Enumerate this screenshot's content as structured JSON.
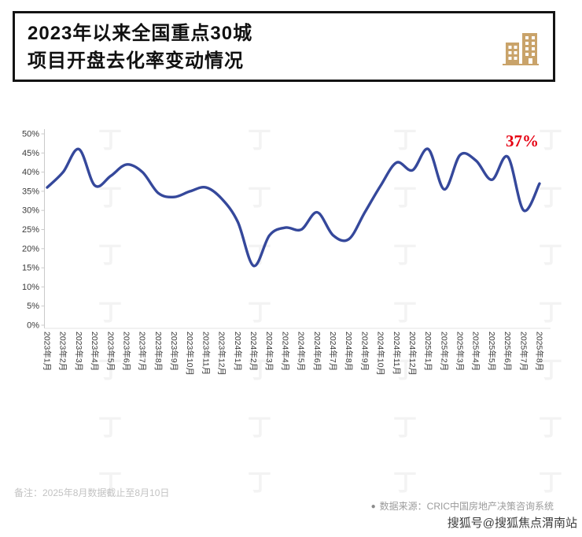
{
  "header": {
    "title_line1": "2023年以来全国重点30城",
    "title_line2": "项目开盘去化率变动情况",
    "icon_color": "#c9a36a"
  },
  "annotation": {
    "label": "37%",
    "color": "#e60012"
  },
  "chart_data": {
    "type": "line",
    "title": "2023年以来全国重点30城项目开盘去化率变动情况",
    "categories": [
      "2023年1月",
      "2023年2月",
      "2023年3月",
      "2023年4月",
      "2023年5月",
      "2023年6月",
      "2023年7月",
      "2023年8月",
      "2023年9月",
      "2023年10月",
      "2023年11月",
      "2023年12月",
      "2024年1月",
      "2024年2月",
      "2024年3月",
      "2024年4月",
      "2024年5月",
      "2024年6月",
      "2024年7月",
      "2024年8月",
      "2024年9月",
      "2024年10月",
      "2024年11月",
      "2024年12月",
      "2025年1月",
      "2025年2月",
      "2025年3月",
      "2025年4月",
      "2025年5月",
      "2025年6月",
      "2025年7月",
      "2025年8月"
    ],
    "values": [
      36,
      40,
      46,
      36.5,
      39,
      42,
      40,
      34.5,
      33.5,
      35,
      36,
      33,
      27,
      15.5,
      23.5,
      25.5,
      25,
      29.5,
      23.5,
      22.5,
      29.5,
      36.5,
      42.5,
      40.5,
      46,
      35.5,
      44.5,
      43,
      38,
      44,
      30,
      37
    ],
    "ylim": [
      0,
      50
    ],
    "y_ticks": [
      "0%",
      "5%",
      "10%",
      "15%",
      "20%",
      "25%",
      "30%",
      "35%",
      "40%",
      "45%",
      "50%"
    ],
    "grid": false,
    "legend": "none",
    "line_color": "#35489b",
    "last_point_label": "37%"
  },
  "footer": {
    "note": "备注：2025年8月数据截止至8月10日",
    "source_bullet": "●",
    "source": "数据来源：CRIC中国房地产决策咨询系统"
  },
  "watermark": {
    "sohu": "搜狐号@搜狐焦点渭南站",
    "pattern_char": "丁"
  }
}
